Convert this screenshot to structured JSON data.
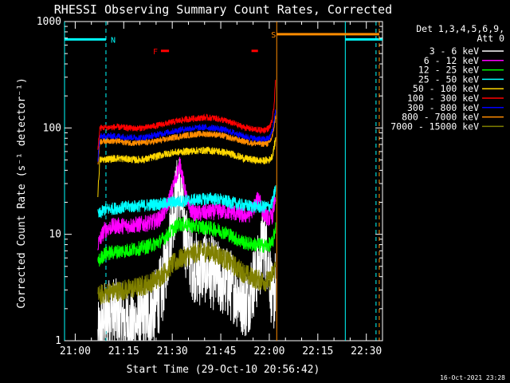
{
  "chart_data": {
    "type": "line",
    "title": "RHESSI Observing Summary Count Rates, Corrected",
    "xlabel": "Start Time (29-Oct-10 20:56:42)",
    "ylabel": "Corrected Count Rate (s⁻¹ detector⁻¹)",
    "yscale": "log",
    "ylim": [
      1,
      1000
    ],
    "y_ticks": [
      1,
      10,
      100,
      1000
    ],
    "y_tick_labels": [
      "1",
      "10",
      "100",
      "1000"
    ],
    "xlim_minutes": [
      56.7,
      155.0
    ],
    "x_ticks": [
      60,
      75,
      90,
      105,
      120,
      135,
      150
    ],
    "x_tick_labels": [
      "21:00",
      "21:15",
      "21:30",
      "21:45",
      "22:00",
      "22:15",
      "22:30"
    ],
    "legend": {
      "header": [
        "Det 1,3,4,5,6,9,",
        "Att 0"
      ],
      "position": "right"
    },
    "series": [
      {
        "name": "3 - 6 keV",
        "color": "#ffffff",
        "noise": 0.35,
        "points": [
          [
            67,
            1
          ],
          [
            69,
            1.6
          ],
          [
            71,
            1.9
          ],
          [
            73,
            1.7
          ],
          [
            75,
            1.5
          ],
          [
            77,
            1.4
          ],
          [
            79,
            1.5
          ],
          [
            81,
            1.6
          ],
          [
            83,
            1.8
          ],
          [
            85,
            2.2
          ],
          [
            87,
            3.2
          ],
          [
            89,
            8
          ],
          [
            90,
            15
          ],
          [
            91,
            20
          ],
          [
            92,
            30
          ],
          [
            93,
            18
          ],
          [
            94,
            9
          ],
          [
            96,
            5.5
          ],
          [
            98,
            4.5
          ],
          [
            100,
            5
          ],
          [
            103,
            4.2
          ],
          [
            106,
            3.6
          ],
          [
            109,
            3.2
          ],
          [
            111,
            2.6
          ],
          [
            113,
            2.3
          ],
          [
            115,
            3.5
          ],
          [
            117,
            5
          ],
          [
            118,
            9
          ],
          [
            119,
            7.5
          ],
          [
            120,
            5
          ],
          [
            121,
            2.2
          ],
          [
            122,
            3.5
          ]
        ]
      },
      {
        "name": "6 - 12 keV",
        "color": "#ff00ff",
        "noise": 0.08,
        "points": [
          [
            67,
            8
          ],
          [
            69,
            11
          ],
          [
            72,
            12
          ],
          [
            75,
            12
          ],
          [
            78,
            12.2
          ],
          [
            81,
            12.5
          ],
          [
            84,
            13
          ],
          [
            86,
            14
          ],
          [
            88,
            17
          ],
          [
            90,
            26
          ],
          [
            91.5,
            38
          ],
          [
            92.5,
            46
          ],
          [
            93.5,
            30
          ],
          [
            95,
            18
          ],
          [
            97,
            15.5
          ],
          [
            100,
            16
          ],
          [
            103,
            16.3
          ],
          [
            106,
            16.5
          ],
          [
            109,
            16
          ],
          [
            112,
            15
          ],
          [
            114,
            15.5
          ],
          [
            116,
            20
          ],
          [
            117,
            23
          ],
          [
            118,
            16
          ],
          [
            120,
            14
          ],
          [
            121,
            15
          ],
          [
            122,
            24
          ]
        ]
      },
      {
        "name": "12 - 25 keV",
        "color": "#00ff00",
        "noise": 0.07,
        "points": [
          [
            67,
            5.5
          ],
          [
            69,
            6.5
          ],
          [
            72,
            6.8
          ],
          [
            75,
            7
          ],
          [
            78,
            7.2
          ],
          [
            81,
            7.5
          ],
          [
            84,
            8
          ],
          [
            86,
            8.5
          ],
          [
            88,
            9.5
          ],
          [
            90,
            11
          ],
          [
            92,
            12.5
          ],
          [
            95,
            12.2
          ],
          [
            98,
            11.8
          ],
          [
            101,
            11.5
          ],
          [
            104,
            11
          ],
          [
            107,
            10.2
          ],
          [
            110,
            9
          ],
          [
            113,
            8.2
          ],
          [
            116,
            8
          ],
          [
            119,
            7.8
          ],
          [
            121,
            8.2
          ],
          [
            122,
            12
          ]
        ]
      },
      {
        "name": "25 - 50 keV",
        "color": "#00ffff",
        "noise": 0.06,
        "points": [
          [
            67,
            15
          ],
          [
            69,
            17
          ],
          [
            72,
            17.5
          ],
          [
            75,
            18
          ],
          [
            78,
            18.3
          ],
          [
            81,
            18.6
          ],
          [
            84,
            19
          ],
          [
            87,
            19.3
          ],
          [
            90,
            20
          ],
          [
            93,
            20.5
          ],
          [
            96,
            21
          ],
          [
            99,
            21.3
          ],
          [
            102,
            21.8
          ],
          [
            105,
            21
          ],
          [
            108,
            20
          ],
          [
            111,
            19
          ],
          [
            114,
            18.5
          ],
          [
            117,
            18
          ],
          [
            120,
            18.3
          ],
          [
            121,
            20
          ],
          [
            122,
            28
          ]
        ]
      },
      {
        "name": "50 - 100 keV",
        "color": "#ffd700",
        "noise": 0.035,
        "points": [
          [
            67,
            24
          ],
          [
            67.6,
            50
          ],
          [
            70,
            51
          ],
          [
            73,
            52
          ],
          [
            76,
            51
          ],
          [
            79,
            50
          ],
          [
            82,
            51
          ],
          [
            85,
            54
          ],
          [
            88,
            57
          ],
          [
            91,
            59
          ],
          [
            94,
            60
          ],
          [
            97,
            61
          ],
          [
            100,
            61.5
          ],
          [
            103,
            61
          ],
          [
            106,
            59
          ],
          [
            109,
            56
          ],
          [
            112,
            52
          ],
          [
            115,
            50
          ],
          [
            118,
            49
          ],
          [
            120,
            50
          ],
          [
            121,
            55
          ],
          [
            122,
            80
          ]
        ]
      },
      {
        "name": "100 - 300 keV",
        "color": "#ff0000",
        "noise": 0.03,
        "points": [
          [
            67,
            60
          ],
          [
            67.6,
            100
          ],
          [
            70,
            101
          ],
          [
            73,
            102
          ],
          [
            76,
            100
          ],
          [
            79,
            99
          ],
          [
            82,
            101
          ],
          [
            85,
            105
          ],
          [
            88,
            110
          ],
          [
            91,
            115
          ],
          [
            94,
            120
          ],
          [
            97,
            123
          ],
          [
            100,
            125
          ],
          [
            103,
            124
          ],
          [
            106,
            118
          ],
          [
            109,
            110
          ],
          [
            112,
            102
          ],
          [
            115,
            97
          ],
          [
            118,
            95
          ],
          [
            120,
            100
          ],
          [
            121,
            120
          ],
          [
            121.6,
            180
          ],
          [
            122,
            320
          ]
        ]
      },
      {
        "name": "300 - 800 keV",
        "color": "#0000ff",
        "noise": 0.03,
        "points": [
          [
            67,
            50
          ],
          [
            67.6,
            83
          ],
          [
            70,
            84
          ],
          [
            73,
            84
          ],
          [
            76,
            82
          ],
          [
            79,
            81
          ],
          [
            82,
            82
          ],
          [
            85,
            86
          ],
          [
            88,
            90
          ],
          [
            91,
            94
          ],
          [
            94,
            98
          ],
          [
            97,
            100
          ],
          [
            100,
            101
          ],
          [
            103,
            100
          ],
          [
            106,
            96
          ],
          [
            109,
            90
          ],
          [
            112,
            84
          ],
          [
            115,
            80
          ],
          [
            118,
            78
          ],
          [
            120,
            80
          ],
          [
            121,
            95
          ],
          [
            122,
            150
          ]
        ]
      },
      {
        "name": "800 - 7000 keV",
        "color": "#ff8c00",
        "noise": 0.03,
        "points": [
          [
            67,
            45
          ],
          [
            67.6,
            75
          ],
          [
            70,
            76
          ],
          [
            73,
            75
          ],
          [
            76,
            73
          ],
          [
            79,
            72
          ],
          [
            82,
            73
          ],
          [
            85,
            75
          ],
          [
            88,
            78
          ],
          [
            91,
            82
          ],
          [
            94,
            85
          ],
          [
            97,
            87
          ],
          [
            100,
            88
          ],
          [
            103,
            87
          ],
          [
            106,
            84
          ],
          [
            109,
            79
          ],
          [
            112,
            75
          ],
          [
            115,
            72
          ],
          [
            118,
            71
          ],
          [
            120,
            72
          ],
          [
            121,
            85
          ],
          [
            122,
            130
          ]
        ]
      },
      {
        "name": "7000 - 15000 keV",
        "color": "#808000",
        "noise": 0.1,
        "points": [
          [
            67,
            2.6
          ],
          [
            69,
            2.8
          ],
          [
            72,
            2.9
          ],
          [
            75,
            3
          ],
          [
            78,
            3.1
          ],
          [
            81,
            3.3
          ],
          [
            84,
            3.6
          ],
          [
            87,
            4.2
          ],
          [
            90,
            5.2
          ],
          [
            93,
            6
          ],
          [
            96,
            6.5
          ],
          [
            99,
            7
          ],
          [
            102,
            6.8
          ],
          [
            105,
            6.2
          ],
          [
            108,
            5.4
          ],
          [
            111,
            4.6
          ],
          [
            114,
            4
          ],
          [
            117,
            3.7
          ],
          [
            120,
            3.6
          ],
          [
            121,
            4.2
          ],
          [
            122,
            5
          ]
        ]
      }
    ],
    "annotations": {
      "night_bars": {
        "label": "N",
        "color": "#00ffff",
        "value": 680,
        "segments": [
          [
            56.7,
            69.5
          ],
          [
            143.5,
            155.0
          ]
        ],
        "solid_lines": [
          56.7,
          143.5
        ],
        "dashed_lines": [
          69.5,
          153.0
        ]
      },
      "flare_bars": {
        "label": "F",
        "color": "#ff0000",
        "value": 530,
        "segments": [
          [
            86.5,
            89.0
          ],
          [
            114.5,
            116.5
          ]
        ]
      },
      "saa_bar": {
        "label": "S",
        "color": "#ff8c00",
        "value": 760,
        "segments": [
          [
            122.3,
            154.0
          ]
        ],
        "solid_lines": [
          122.3
        ],
        "dashed_lines": [
          154.0
        ]
      }
    }
  },
  "footer_timestamp": "16-Oct-2021 23:28"
}
